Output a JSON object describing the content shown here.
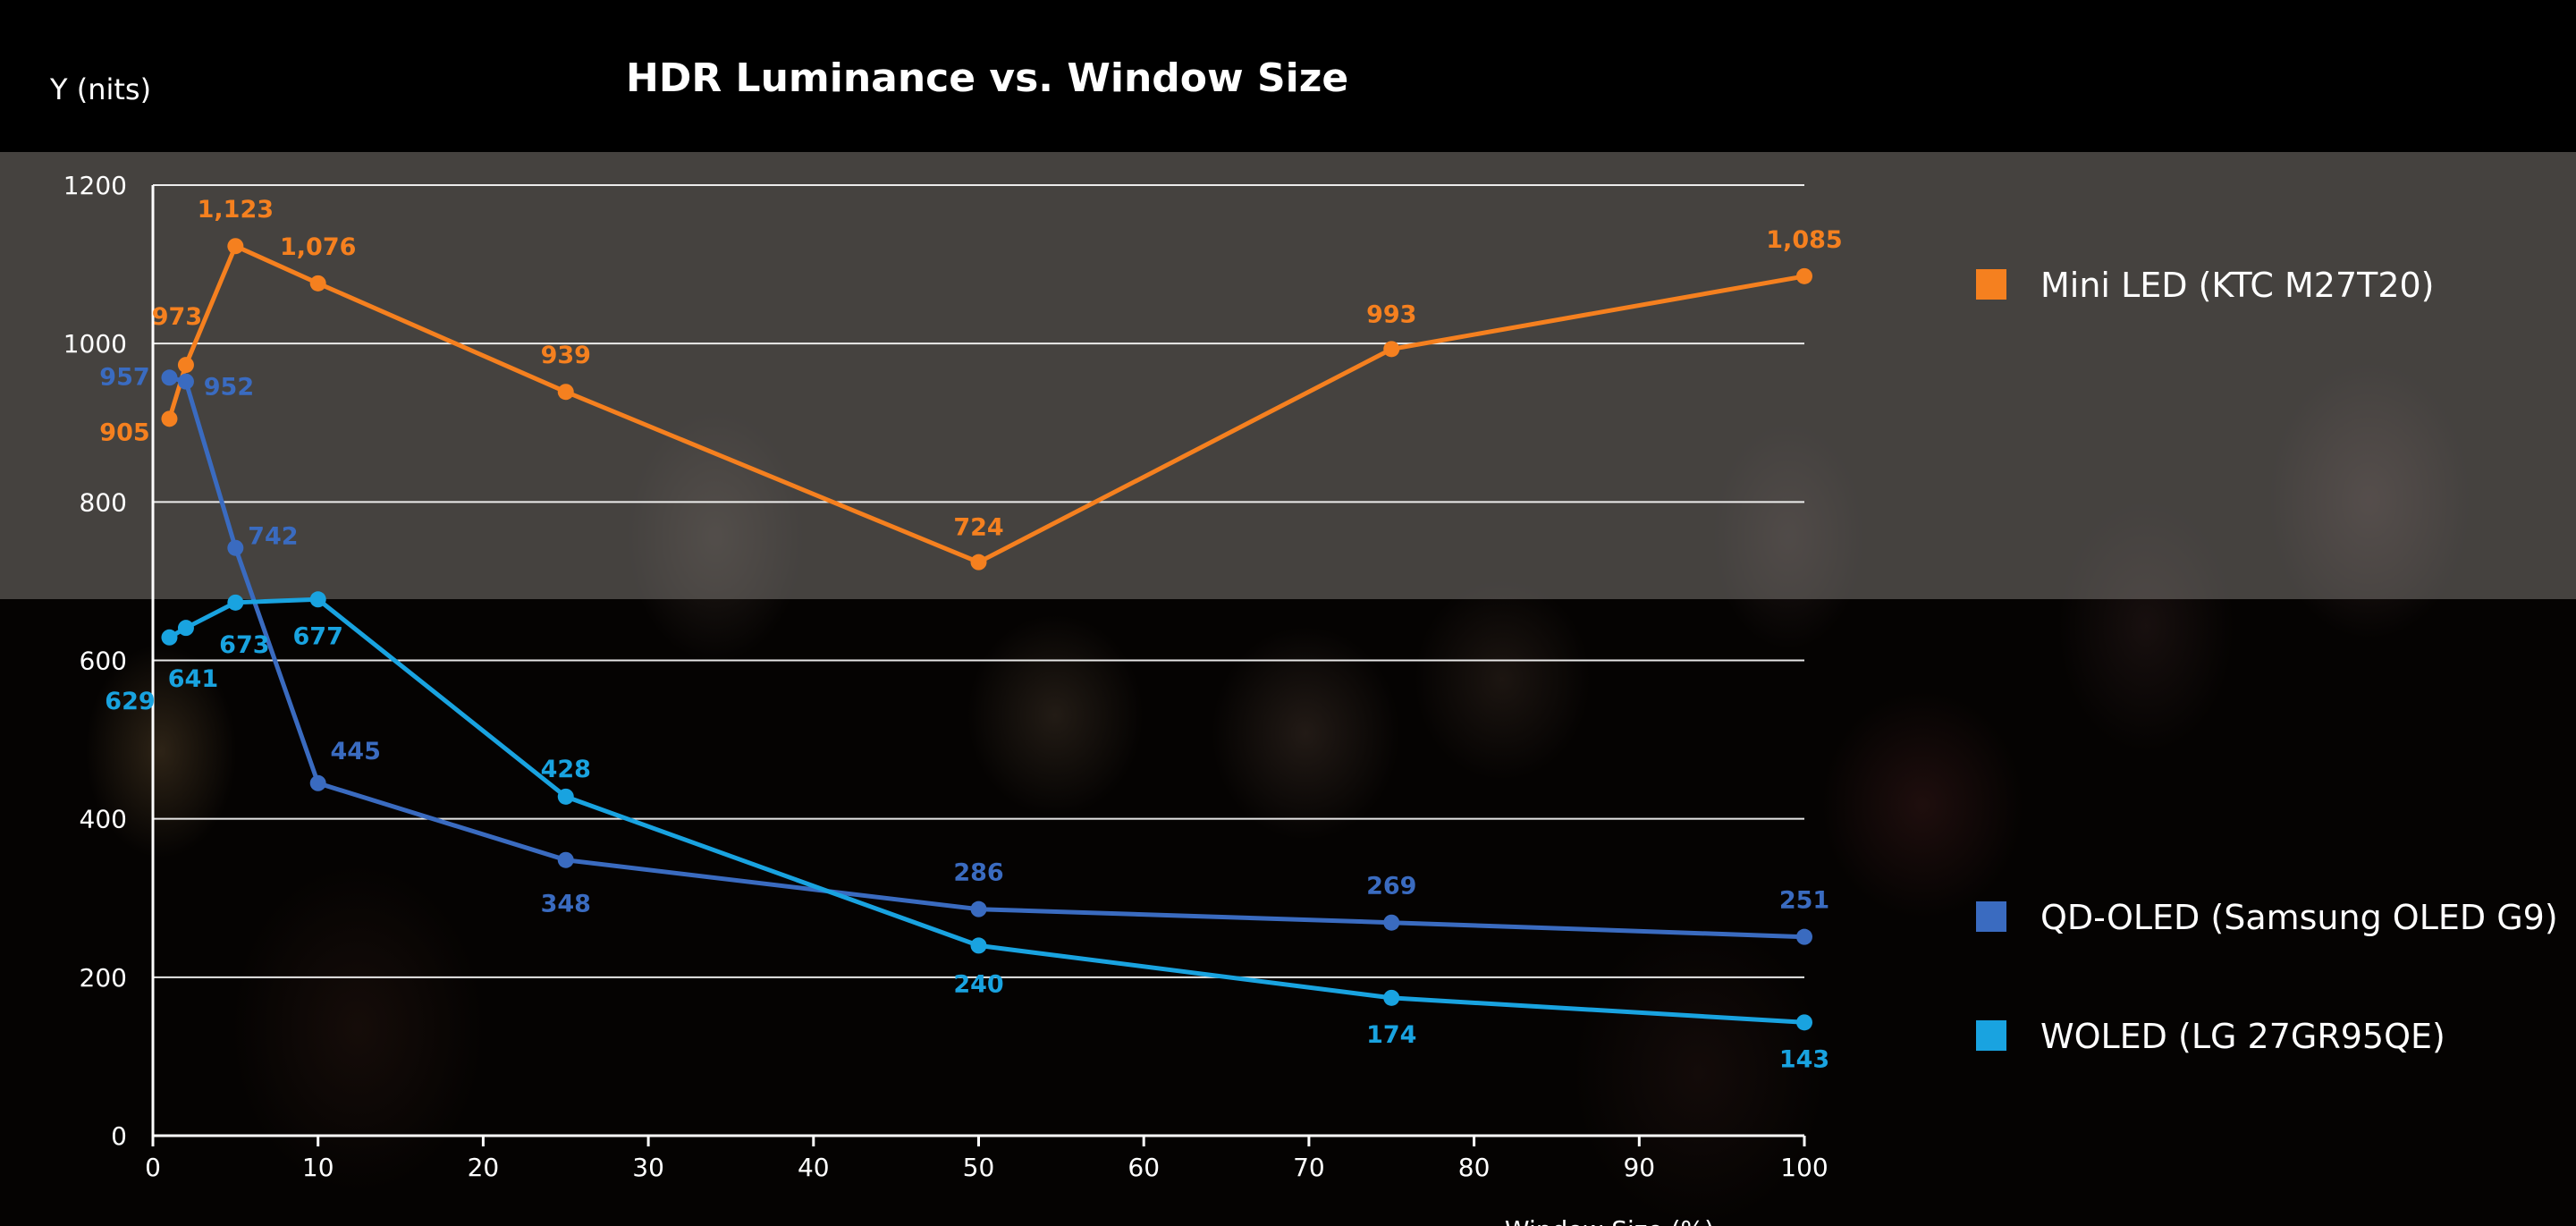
{
  "chart_data": {
    "type": "line",
    "title": "HDR Luminance vs. Window Size",
    "ylabel": "Y (nits)",
    "xlabel": "Window Size (%)",
    "xlim": [
      0,
      100
    ],
    "ylim": [
      0,
      1200
    ],
    "xticks": [
      0,
      10,
      20,
      30,
      40,
      50,
      60,
      70,
      80,
      90,
      100
    ],
    "yticks": [
      0,
      200,
      400,
      600,
      800,
      1000,
      1200
    ],
    "grid": "horizontal",
    "legend_position": "right",
    "series": [
      {
        "name": "Mini LED (KTC M27T20)",
        "color": "#f5801f",
        "x": [
          1,
          2,
          5,
          10,
          25,
          50,
          75,
          100
        ],
        "values": [
          905,
          973,
          1123,
          1076,
          939,
          724,
          993,
          1085
        ],
        "labels": [
          "905",
          "973",
          "1,123",
          "1,076",
          "939",
          "724",
          "993",
          "1,085"
        ]
      },
      {
        "name": "QD-OLED (Samsung OLED G9)",
        "color": "#3a6bc0",
        "x": [
          1,
          2,
          5,
          10,
          25,
          50,
          75,
          100
        ],
        "values": [
          957,
          952,
          742,
          445,
          348,
          286,
          269,
          251
        ],
        "labels": [
          "957",
          "952",
          "742",
          "445",
          "348",
          "286",
          "269",
          "251"
        ]
      },
      {
        "name": "WOLED (LG 27GR95QE)",
        "color": "#19a3e0",
        "x": [
          1,
          2,
          5,
          10,
          25,
          50,
          75,
          100
        ],
        "values": [
          629,
          641,
          673,
          677,
          428,
          240,
          174,
          143
        ],
        "labels": [
          "629",
          "641",
          "673",
          "677",
          "428",
          "240",
          "174",
          "143"
        ]
      }
    ]
  }
}
